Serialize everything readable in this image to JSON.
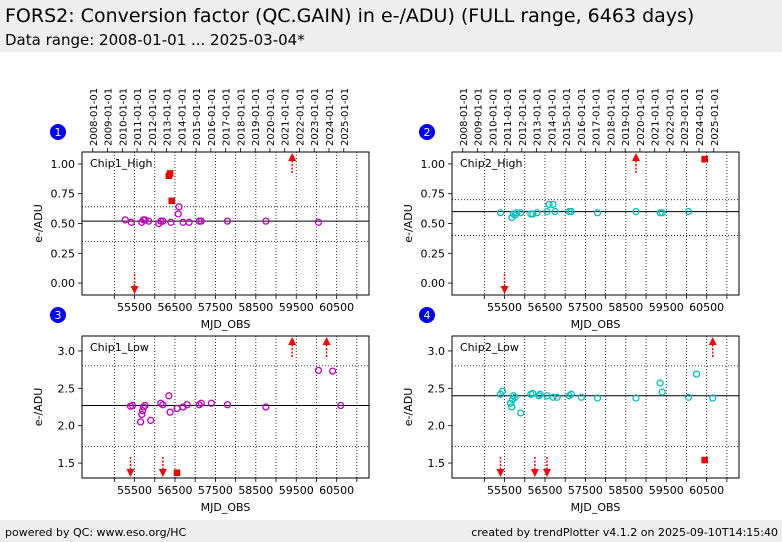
{
  "header": {
    "title": "FORS2: Conversion factor (QC.GAIN) in e-/ADU) (FULL range, 6463 days)",
    "subtitle": "Data range: 2008-01-01 ... 2025-03-04*"
  },
  "footer": {
    "left": "powered by QC: www.eso.org/HC",
    "right": "created by trendPlotter v4.1.2 on 2025-09-10T14:15:40"
  },
  "colors": {
    "chip1": "#bf00bf",
    "chip2": "#00bfbf",
    "outlier": "#ff0000",
    "badge": "#0000ff",
    "header_bg": "#eeeeee"
  },
  "chart_data": [
    {
      "type": "scatter",
      "panel": "1",
      "label": "Chip1_High",
      "color": "#bf00bf",
      "xlabel": "MJD_OBS",
      "ylabel": "e-/ADU",
      "xlim": [
        54200,
        61300
      ],
      "ylim": [
        -0.1,
        1.1
      ],
      "xticks": [
        55000,
        55500,
        56000,
        56500,
        57000,
        57500,
        58000,
        58500,
        59000,
        59500,
        60000,
        60500,
        61000
      ],
      "xtick_labels": [
        "",
        "55500",
        "",
        "56500",
        "",
        "57500",
        "",
        "58500",
        "",
        "59500",
        "",
        "60500",
        ""
      ],
      "yticks": [
        0.0,
        0.25,
        0.5,
        0.75,
        1.0
      ],
      "ytick_labels": [
        "0.00",
        "0.25",
        "0.50",
        "0.75",
        "1.00"
      ],
      "dates": [
        "2008-01-01",
        "2009-01-01",
        "2010-01-01",
        "2011-01-01",
        "2012-01-01",
        "2013-01-01",
        "2014-01-01",
        "2015-01-01",
        "2016-01-01",
        "2017-01-01",
        "2018-01-01",
        "2019-01-01",
        "2020-01-01",
        "2021-01-01",
        "2022-01-01",
        "2023-01-01",
        "2024-01-01",
        "2025-01-01"
      ],
      "date_mjd": [
        54466,
        54832,
        55197,
        55562,
        55927,
        56293,
        56658,
        57023,
        57388,
        57754,
        58119,
        58484,
        58849,
        59215,
        59580,
        59945,
        60310,
        60676
      ],
      "median": 0.52,
      "limits": [
        0.35,
        0.64
      ],
      "x": [
        55270,
        55420,
        55680,
        55720,
        55760,
        55850,
        56100,
        56150,
        56200,
        56400,
        56580,
        56600,
        56700,
        56850,
        57100,
        57150,
        57800,
        58750,
        60050
      ],
      "y": [
        0.53,
        0.51,
        0.51,
        0.53,
        0.53,
        0.52,
        0.5,
        0.52,
        0.52,
        0.51,
        0.58,
        0.64,
        0.51,
        0.51,
        0.52,
        0.52,
        0.52,
        0.52,
        0.51
      ],
      "outliers_x": [
        56350,
        56380,
        56420
      ],
      "outliers_y": [
        0.9,
        0.92,
        0.69
      ],
      "arrows_up_x": [
        59400
      ],
      "arrows_down_x": [
        55500
      ]
    },
    {
      "type": "scatter",
      "panel": "2",
      "label": "Chip2_High",
      "color": "#00bfbf",
      "xlabel": "MJD_OBS",
      "ylabel": "e-/ADU",
      "xlim": [
        54200,
        61300
      ],
      "ylim": [
        -0.1,
        1.1
      ],
      "xticks": [
        55000,
        55500,
        56000,
        56500,
        57000,
        57500,
        58000,
        58500,
        59000,
        59500,
        60000,
        60500,
        61000
      ],
      "xtick_labels": [
        "",
        "55500",
        "",
        "56500",
        "",
        "57500",
        "",
        "58500",
        "",
        "59500",
        "",
        "60500",
        ""
      ],
      "yticks": [
        0.0,
        0.25,
        0.5,
        0.75,
        1.0
      ],
      "ytick_labels": [
        "0.00",
        "0.25",
        "0.50",
        "0.75",
        "1.00"
      ],
      "dates": [
        "2008-01-01",
        "2009-01-01",
        "2010-01-01",
        "2011-01-01",
        "2012-01-01",
        "2013-01-01",
        "2014-01-01",
        "2015-01-01",
        "2016-01-01",
        "2017-01-01",
        "2018-01-01",
        "2019-01-01",
        "2020-01-01",
        "2021-01-01",
        "2022-01-01",
        "2023-01-01",
        "2024-01-01",
        "2025-01-01"
      ],
      "date_mjd": [
        54466,
        54832,
        55197,
        55562,
        55927,
        56293,
        56658,
        57023,
        57388,
        57754,
        58119,
        58484,
        58849,
        59215,
        59580,
        59945,
        60310,
        60676
      ],
      "median": 0.6,
      "limits": [
        0.4,
        0.7
      ],
      "x": [
        55400,
        55680,
        55720,
        55760,
        55800,
        55900,
        56150,
        56200,
        56300,
        56550,
        56600,
        56700,
        56750,
        57100,
        57150,
        57800,
        58750,
        59350,
        59400,
        60050
      ],
      "y": [
        0.59,
        0.55,
        0.58,
        0.57,
        0.59,
        0.59,
        0.58,
        0.58,
        0.59,
        0.6,
        0.66,
        0.66,
        0.6,
        0.6,
        0.6,
        0.59,
        0.6,
        0.59,
        0.59,
        0.6
      ],
      "outliers_x": [
        60450
      ],
      "outliers_y": [
        1.04
      ],
      "arrows_up_x": [
        58750
      ],
      "arrows_down_x": [
        55500
      ]
    },
    {
      "type": "scatter",
      "panel": "3",
      "label": "Chip1_Low",
      "color": "#bf00bf",
      "xlabel": "MJD_OBS",
      "ylabel": "e-/ADU",
      "xlim": [
        54200,
        61300
      ],
      "ylim": [
        1.3,
        3.2
      ],
      "xticks": [
        55000,
        55500,
        56000,
        56500,
        57000,
        57500,
        58000,
        58500,
        59000,
        59500,
        60000,
        60500,
        61000
      ],
      "xtick_labels": [
        "",
        "55500",
        "",
        "56500",
        "",
        "57500",
        "",
        "58500",
        "",
        "59500",
        "",
        "60500",
        ""
      ],
      "yticks": [
        1.5,
        2.0,
        2.5,
        3.0
      ],
      "ytick_labels": [
        "1.5",
        "2.0",
        "2.5",
        "3.0"
      ],
      "median": 2.27,
      "limits": [
        1.72,
        2.8
      ],
      "x": [
        55400,
        55450,
        55650,
        55680,
        55700,
        55720,
        55760,
        55900,
        56150,
        56200,
        56350,
        56380,
        56550,
        56700,
        56800,
        57100,
        57150,
        57400,
        57800,
        58750,
        60050,
        60400,
        60600
      ],
      "y": [
        2.26,
        2.27,
        2.05,
        2.15,
        2.2,
        2.25,
        2.27,
        2.07,
        2.3,
        2.28,
        2.4,
        2.18,
        2.23,
        2.25,
        2.28,
        2.28,
        2.3,
        2.3,
        2.28,
        2.25,
        2.74,
        2.73,
        2.27
      ],
      "outliers_x": [
        56550
      ],
      "outliers_y": [
        1.37
      ],
      "arrows_up_x": [
        59400,
        60250
      ],
      "arrows_down_x": [
        55400,
        56200
      ]
    },
    {
      "type": "scatter",
      "panel": "4",
      "label": "Chip2_Low",
      "color": "#00bfbf",
      "xlabel": "MJD_OBS",
      "ylabel": "e-/ADU",
      "xlim": [
        54200,
        61300
      ],
      "ylim": [
        1.3,
        3.2
      ],
      "xticks": [
        55000,
        55500,
        56000,
        56500,
        57000,
        57500,
        58000,
        58500,
        59000,
        59500,
        60000,
        60500,
        61000
      ],
      "xtick_labels": [
        "",
        "55500",
        "",
        "56500",
        "",
        "57500",
        "",
        "58500",
        "",
        "59500",
        "",
        "60500",
        ""
      ],
      "yticks": [
        1.5,
        2.0,
        2.5,
        3.0
      ],
      "ytick_labels": [
        "1.5",
        "2.0",
        "2.5",
        "3.0"
      ],
      "median": 2.4,
      "limits": [
        1.72,
        2.8
      ],
      "x": [
        55400,
        55450,
        55650,
        55680,
        55700,
        55720,
        55760,
        55900,
        56150,
        56200,
        56350,
        56380,
        56550,
        56700,
        56800,
        57100,
        57150,
        57400,
        57800,
        58750,
        59350,
        59400,
        60050,
        60250,
        60650
      ],
      "y": [
        2.42,
        2.46,
        2.3,
        2.25,
        2.35,
        2.4,
        2.38,
        2.17,
        2.42,
        2.43,
        2.4,
        2.42,
        2.4,
        2.38,
        2.38,
        2.4,
        2.42,
        2.38,
        2.37,
        2.37,
        2.57,
        2.45,
        2.38,
        2.69,
        2.37
      ],
      "outliers_x": [
        60450
      ],
      "outliers_y": [
        1.54
      ],
      "arrows_up_x": [
        60650
      ],
      "arrows_down_x": [
        55400,
        56250,
        56550
      ]
    }
  ]
}
